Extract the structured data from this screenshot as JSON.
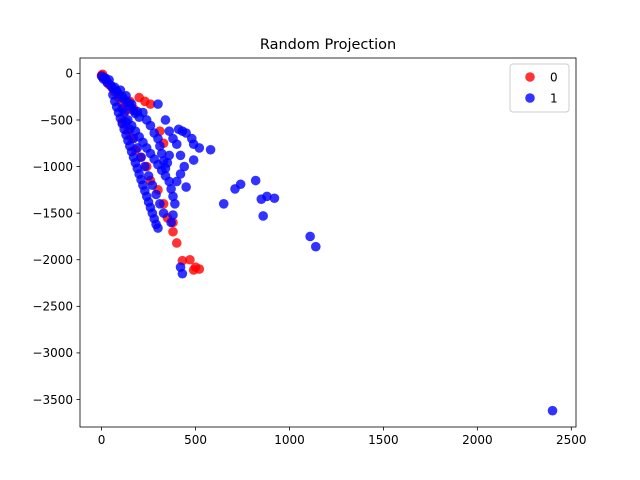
{
  "chart_data": {
    "type": "scatter",
    "title": "Random Projection",
    "xlabel": "",
    "ylabel": "",
    "xlim": [
      -115,
      2525
    ],
    "ylim": [
      -3795,
      165
    ],
    "xticks": [
      0,
      500,
      1000,
      1500,
      2000,
      2500
    ],
    "yticks": [
      0,
      -500,
      -1000,
      -1500,
      -2000,
      -2500,
      -3000,
      -3500
    ],
    "grid": false,
    "legend_position": "top-right",
    "series": [
      {
        "name": "0",
        "color": "#ff0000",
        "points": [
          [
            0,
            -20
          ],
          [
            5,
            -10
          ],
          [
            10,
            -40
          ],
          [
            20,
            -60
          ],
          [
            30,
            -90
          ],
          [
            40,
            -120
          ],
          [
            55,
            -150
          ],
          [
            70,
            -200
          ],
          [
            90,
            -260
          ],
          [
            110,
            -330
          ],
          [
            130,
            -400
          ],
          [
            150,
            -300
          ],
          [
            170,
            -380
          ],
          [
            200,
            -260
          ],
          [
            230,
            -300
          ],
          [
            260,
            -330
          ],
          [
            110,
            -520
          ],
          [
            140,
            -620
          ],
          [
            160,
            -700
          ],
          [
            180,
            -820
          ],
          [
            210,
            -900
          ],
          [
            240,
            -1000
          ],
          [
            260,
            -1150
          ],
          [
            300,
            -1250
          ],
          [
            330,
            -1400
          ],
          [
            350,
            -1550
          ],
          [
            380,
            -1700
          ],
          [
            400,
            -1820
          ],
          [
            380,
            -1600
          ],
          [
            310,
            -620
          ],
          [
            330,
            -750
          ],
          [
            430,
            -2010
          ],
          [
            470,
            -2000
          ],
          [
            500,
            -2080
          ],
          [
            520,
            -2100
          ],
          [
            490,
            -2110
          ]
        ]
      },
      {
        "name": "1",
        "color": "#0000ff",
        "points": [
          [
            0,
            -30
          ],
          [
            10,
            -60
          ],
          [
            20,
            -50
          ],
          [
            30,
            -100
          ],
          [
            40,
            -70
          ],
          [
            50,
            -130
          ],
          [
            60,
            -160
          ],
          [
            70,
            -150
          ],
          [
            80,
            -190
          ],
          [
            90,
            -220
          ],
          [
            100,
            -180
          ],
          [
            110,
            -250
          ],
          [
            120,
            -280
          ],
          [
            130,
            -240
          ],
          [
            140,
            -310
          ],
          [
            150,
            -350
          ],
          [
            160,
            -330
          ],
          [
            170,
            -400
          ],
          [
            180,
            -430
          ],
          [
            190,
            -410
          ],
          [
            200,
            -470
          ],
          [
            60,
            -230
          ],
          [
            70,
            -300
          ],
          [
            80,
            -360
          ],
          [
            90,
            -420
          ],
          [
            100,
            -480
          ],
          [
            110,
            -540
          ],
          [
            120,
            -600
          ],
          [
            130,
            -660
          ],
          [
            140,
            -720
          ],
          [
            150,
            -780
          ],
          [
            160,
            -840
          ],
          [
            170,
            -900
          ],
          [
            180,
            -960
          ],
          [
            190,
            -1020
          ],
          [
            200,
            -1080
          ],
          [
            210,
            -1140
          ],
          [
            220,
            -1200
          ],
          [
            230,
            -1260
          ],
          [
            240,
            -1320
          ],
          [
            250,
            -1380
          ],
          [
            260,
            -1440
          ],
          [
            270,
            -1500
          ],
          [
            280,
            -1560
          ],
          [
            290,
            -1620
          ],
          [
            300,
            -1660
          ],
          [
            120,
            -420
          ],
          [
            140,
            -500
          ],
          [
            160,
            -560
          ],
          [
            180,
            -620
          ],
          [
            200,
            -680
          ],
          [
            220,
            -740
          ],
          [
            240,
            -800
          ],
          [
            260,
            -860
          ],
          [
            280,
            -920
          ],
          [
            300,
            -980
          ],
          [
            320,
            -1040
          ],
          [
            340,
            -1100
          ],
          [
            360,
            -1160
          ],
          [
            370,
            -1240
          ],
          [
            380,
            -1320
          ],
          [
            390,
            -1400
          ],
          [
            380,
            -1520
          ],
          [
            370,
            -1600
          ],
          [
            330,
            -1500
          ],
          [
            310,
            -1400
          ],
          [
            290,
            -1300
          ],
          [
            270,
            -1200
          ],
          [
            250,
            -1100
          ],
          [
            230,
            -1000
          ],
          [
            210,
            -900
          ],
          [
            190,
            -800
          ],
          [
            170,
            -700
          ],
          [
            150,
            -600
          ],
          [
            130,
            -520
          ],
          [
            110,
            -380
          ],
          [
            220,
            -420
          ],
          [
            240,
            -500
          ],
          [
            260,
            -560
          ],
          [
            280,
            -640
          ],
          [
            300,
            -700
          ],
          [
            310,
            -780
          ],
          [
            320,
            -860
          ],
          [
            330,
            -940
          ],
          [
            340,
            -1020
          ],
          [
            350,
            -960
          ],
          [
            360,
            -880
          ],
          [
            300,
            -330
          ],
          [
            340,
            -500
          ],
          [
            360,
            -620
          ],
          [
            380,
            -700
          ],
          [
            400,
            -760
          ],
          [
            420,
            -880
          ],
          [
            440,
            -1000
          ],
          [
            420,
            -1080
          ],
          [
            400,
            -1160
          ],
          [
            410,
            -600
          ],
          [
            430,
            -620
          ],
          [
            450,
            -640
          ],
          [
            480,
            -700
          ],
          [
            490,
            -760
          ],
          [
            520,
            -800
          ],
          [
            580,
            -820
          ],
          [
            490,
            -930
          ],
          [
            450,
            -1220
          ],
          [
            420,
            -2080
          ],
          [
            430,
            -2150
          ],
          [
            650,
            -1400
          ],
          [
            710,
            -1240
          ],
          [
            740,
            -1190
          ],
          [
            820,
            -1150
          ],
          [
            850,
            -1350
          ],
          [
            880,
            -1320
          ],
          [
            920,
            -1340
          ],
          [
            860,
            -1530
          ],
          [
            1110,
            -1750
          ],
          [
            1140,
            -1860
          ],
          [
            2400,
            -3620
          ]
        ]
      }
    ]
  }
}
